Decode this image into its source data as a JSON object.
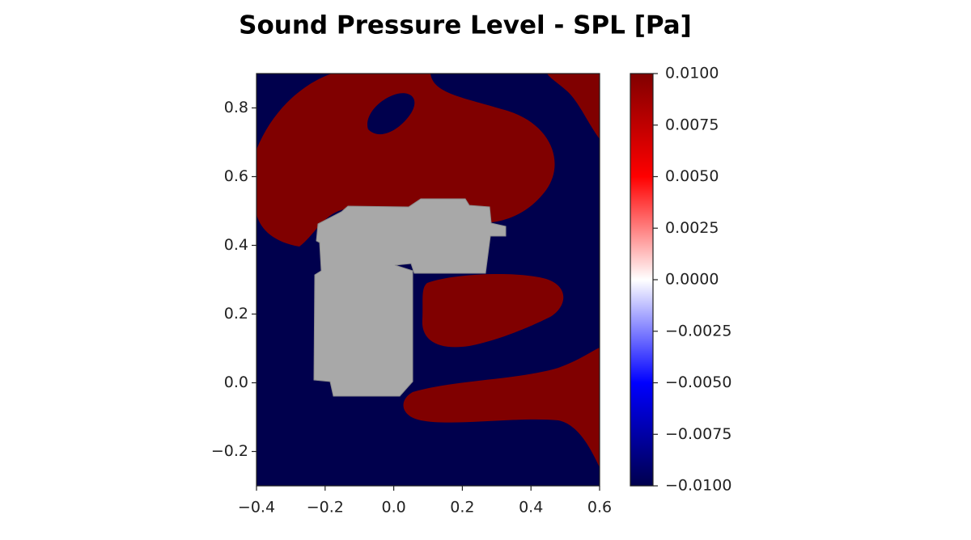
{
  "chart_data": {
    "type": "heatmap",
    "title": "Sound Pressure Level - SPL [Pa]",
    "xlim": [
      -0.4,
      0.6
    ],
    "ylim": [
      -0.3,
      0.9
    ],
    "xticks": [
      {
        "value": -0.4,
        "label": "−0.4"
      },
      {
        "value": -0.2,
        "label": "−0.2"
      },
      {
        "value": 0,
        "label": "0.0"
      },
      0.2,
      0.4,
      0.6
    ],
    "yticks": [
      {
        "value": -0.2,
        "label": "−0.2"
      },
      {
        "value": 0,
        "label": "0.0"
      },
      0.2,
      0.4,
      0.6,
      0.8
    ],
    "colorbar_lim": [
      -0.01,
      0.01
    ],
    "colorbar_ticks": [
      {
        "value": -0.01,
        "label": "−0.0100"
      },
      {
        "value": -0.0075,
        "label": "−0.0075"
      },
      {
        "value": -0.005,
        "label": "−0.0050"
      },
      {
        "value": -0.0025,
        "label": "−0.0025"
      },
      {
        "value": 0,
        "label": "0.0000"
      },
      {
        "value": 0.0025,
        "label": "0.0025"
      },
      {
        "value": 0.005,
        "label": "0.0050"
      },
      {
        "value": 0.0075,
        "label": "0.0075"
      },
      {
        "value": 0.01,
        "label": "0.0100"
      }
    ],
    "colorbar_colors": [
      "#00004d",
      "#0000ff",
      "#ffffff",
      "#ff0000",
      "#800000"
    ]
  }
}
